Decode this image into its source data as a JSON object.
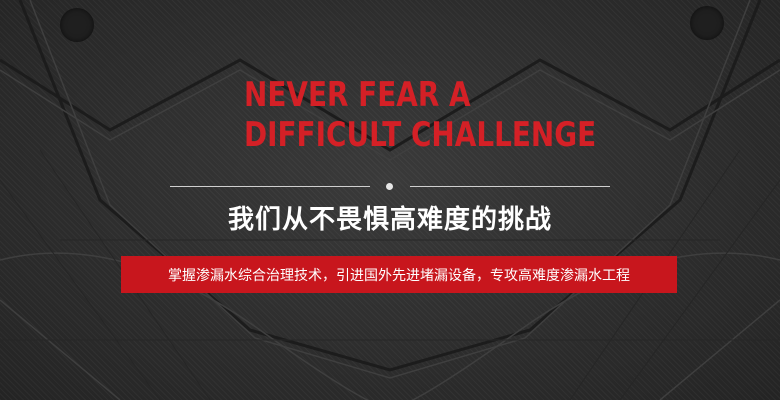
{
  "banner": {
    "heading_line_1": "NEVER FEAR A",
    "heading_line_2": "DIFFICULT CHALLENGE",
    "subtitle_cn": "我们从不畏惧高难度的挑战",
    "tagline_cn": "掌握渗漏水综合治理技术，引进国外先进堵漏设备，专攻高难度渗漏水工程"
  },
  "colors": {
    "background": "#2f2f2f",
    "accent_red": "#d42026",
    "bar_red": "#c8161d",
    "text_white": "#ffffff"
  }
}
